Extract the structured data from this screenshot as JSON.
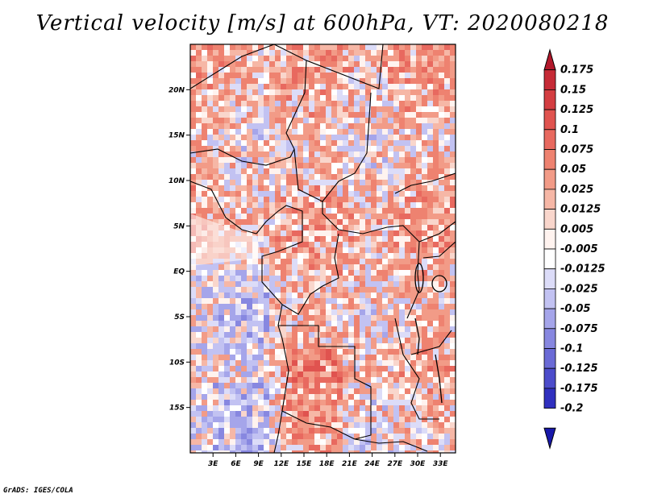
{
  "chart_data": {
    "type": "heatmap",
    "title": "Vertical velocity [m/s] at 600hPa, VT: 2020080218",
    "x_ticks": [
      "3E",
      "6E",
      "9E",
      "12E",
      "15E",
      "18E",
      "21E",
      "24E",
      "27E",
      "30E",
      "33E"
    ],
    "x_tick_values": [
      3,
      6,
      9,
      12,
      15,
      18,
      21,
      24,
      27,
      30,
      33
    ],
    "y_ticks": [
      "20N",
      "15N",
      "10N",
      "5N",
      "EQ",
      "5S",
      "10S",
      "15S"
    ],
    "y_tick_values": [
      20,
      15,
      10,
      5,
      0,
      -5,
      -10,
      -15
    ],
    "xlim": [
      0,
      35
    ],
    "ylim": [
      -20,
      25
    ],
    "colorbar": {
      "levels": [
        "0.175",
        "0.15",
        "0.125",
        "0.1",
        "0.075",
        "0.05",
        "0.025",
        "0.0125",
        "0.005",
        "-0.005",
        "-0.0125",
        "-0.025",
        "-0.05",
        "-0.075",
        "-0.1",
        "-0.125",
        "-0.175",
        "-0.2"
      ],
      "colors": [
        "#b2182b",
        "#c62a36",
        "#d43d41",
        "#e0534f",
        "#e8695f",
        "#ee8270",
        "#f29b87",
        "#f6b7a6",
        "#f9d6cc",
        "#fff3ef",
        "#ffffff",
        "#dcdcf8",
        "#c2c2f2",
        "#a5a5ea",
        "#8787e0",
        "#6a6ad6",
        "#4c4ccb",
        "#3030bf",
        "#1818aa"
      ]
    }
  },
  "credit": "GrADS: IGES/COLA"
}
